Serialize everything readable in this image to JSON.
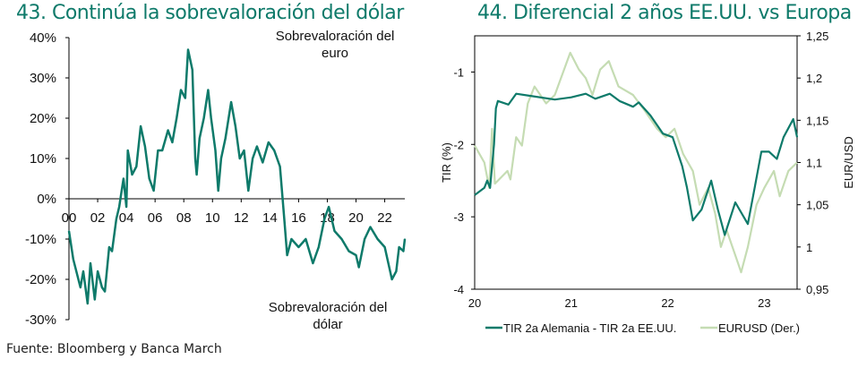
{
  "source": "Fuente: Bloomberg y Banca March",
  "chart_data": [
    {
      "type": "line",
      "title": "43. Continúa la sobrevaloración del dólar",
      "xlabel": "",
      "ylabel": "",
      "xlim": [
        2000,
        2023.4
      ],
      "ylim": [
        -30,
        40
      ],
      "y_ticks": [
        "40%",
        "30%",
        "20%",
        "10%",
        "0%",
        "-10%",
        "-20%",
        "-30%"
      ],
      "y_tick_values": [
        40,
        30,
        20,
        10,
        0,
        -10,
        -20,
        -30
      ],
      "x_ticks": [
        "00",
        "02",
        "04",
        "06",
        "08",
        "10",
        "12",
        "14",
        "16",
        "18",
        "20",
        "22"
      ],
      "x_tick_values": [
        2000,
        2002,
        2004,
        2006,
        2008,
        2010,
        2012,
        2014,
        2016,
        2018,
        2020,
        2022
      ],
      "annotations": [
        "Sobrevaloración del",
        "euro",
        "Sobrevaloración del",
        "dólar"
      ],
      "color": "#0e7a6a",
      "grid": false,
      "x": [
        2000.0,
        2000.3,
        2000.8,
        2001.0,
        2001.3,
        2001.5,
        2001.8,
        2002.0,
        2002.3,
        2002.5,
        2002.8,
        2003.0,
        2003.3,
        2003.5,
        2003.8,
        2004.0,
        2004.1,
        2004.4,
        2004.7,
        2005.0,
        2005.3,
        2005.6,
        2005.9,
        2006.2,
        2006.5,
        2006.9,
        2007.2,
        2007.5,
        2007.8,
        2008.1,
        2008.3,
        2008.6,
        2008.8,
        2008.9,
        2009.1,
        2009.4,
        2009.7,
        2009.9,
        2010.2,
        2010.4,
        2010.6,
        2010.9,
        2011.3,
        2011.6,
        2011.9,
        2012.2,
        2012.5,
        2012.8,
        2013.1,
        2013.5,
        2013.9,
        2014.3,
        2014.7,
        2015.0,
        2015.2,
        2015.5,
        2016.0,
        2016.5,
        2017.0,
        2017.4,
        2017.8,
        2018.1,
        2018.5,
        2019.0,
        2019.5,
        2020.0,
        2020.2,
        2020.6,
        2021.0,
        2021.5,
        2022.0,
        2022.5,
        2022.8,
        2023.0,
        2023.3,
        2023.4
      ],
      "values": [
        -8,
        -15,
        -22,
        -18,
        -26,
        -16,
        -25,
        -18,
        -22,
        -23,
        -12,
        -13,
        -5,
        -2,
        5,
        -2,
        12,
        6,
        8,
        18,
        13,
        5,
        2,
        12,
        12,
        17,
        14,
        20,
        27,
        25,
        37,
        32,
        10,
        6,
        15,
        20,
        27,
        20,
        12,
        2,
        10,
        15,
        24,
        18,
        10,
        12,
        2,
        10,
        13,
        9,
        14,
        12,
        8,
        -5,
        -14,
        -10,
        -12,
        -10,
        -16,
        -12,
        -5,
        -2,
        -8,
        -10,
        -13,
        -14,
        -17,
        -10,
        -7,
        -10,
        -12,
        -20,
        -18,
        -12,
        -13,
        -10
      ]
    },
    {
      "type": "line",
      "title": "44. Diferencial 2 años EE.UU. vs Europa",
      "xlabel": "",
      "ylabel": "TIR (%)",
      "y2label": "EUR/USD",
      "xlim": [
        2020,
        2023.34
      ],
      "ylim": [
        -4,
        -0.5
      ],
      "y2lim": [
        0.95,
        1.25
      ],
      "x_ticks": [
        "20",
        "21",
        "22",
        "23"
      ],
      "x_tick_values": [
        2020,
        2021,
        2022,
        2023
      ],
      "y_ticks": [
        "-1",
        "-2",
        "-3",
        "-4"
      ],
      "y_tick_values": [
        -1,
        -2,
        -3,
        -4
      ],
      "y2_ticks": [
        "1,25",
        "1,2",
        "1,15",
        "1,1",
        "1,05",
        "1",
        "0,95"
      ],
      "y2_tick_values": [
        1.25,
        1.2,
        1.15,
        1.1,
        1.05,
        1.0,
        0.95
      ],
      "legend_position": "bottom",
      "grid": false,
      "series": [
        {
          "name": "TIR 2a Alemania - TIR 2a EE.UU.",
          "axis": "left",
          "color": "#0e7a6a",
          "x": [
            2020.0,
            2020.1,
            2020.13,
            2020.16,
            2020.2,
            2020.22,
            2020.24,
            2020.35,
            2020.43,
            2020.58,
            2020.83,
            2021.0,
            2021.15,
            2021.25,
            2021.4,
            2021.5,
            2021.64,
            2021.7,
            2021.82,
            2021.95,
            2022.05,
            2022.15,
            2022.2,
            2022.26,
            2022.35,
            2022.45,
            2022.52,
            2022.59,
            2022.7,
            2022.83,
            2022.9,
            2022.97,
            2023.05,
            2023.13,
            2023.2,
            2023.3,
            2023.34
          ],
          "values": [
            -2.7,
            -2.6,
            -2.5,
            -2.6,
            -2.0,
            -1.5,
            -1.4,
            -1.45,
            -1.3,
            -1.33,
            -1.38,
            -1.35,
            -1.3,
            -1.37,
            -1.3,
            -1.4,
            -1.48,
            -1.42,
            -1.6,
            -1.85,
            -1.9,
            -2.3,
            -2.6,
            -3.05,
            -2.9,
            -2.5,
            -2.9,
            -3.25,
            -2.8,
            -3.1,
            -2.6,
            -2.1,
            -2.1,
            -2.2,
            -1.9,
            -1.65,
            -1.9
          ]
        },
        {
          "name": "EURUSD (Der.)",
          "axis": "right",
          "color": "#c5dcb3",
          "x": [
            2020.0,
            2020.1,
            2020.15,
            2020.18,
            2020.21,
            2020.34,
            2020.37,
            2020.43,
            2020.49,
            2020.55,
            2020.62,
            2020.74,
            2020.83,
            2020.99,
            2021.08,
            2021.15,
            2021.22,
            2021.3,
            2021.39,
            2021.49,
            2021.64,
            2021.77,
            2021.89,
            2021.98,
            2022.07,
            2022.16,
            2022.26,
            2022.33,
            2022.42,
            2022.49,
            2022.55,
            2022.61,
            2022.73,
            2022.76,
            2022.83,
            2022.92,
            2023.0,
            2023.1,
            2023.16,
            2023.25,
            2023.34
          ],
          "values": [
            1.12,
            1.1,
            1.07,
            1.14,
            1.075,
            1.09,
            1.08,
            1.13,
            1.12,
            1.17,
            1.19,
            1.17,
            1.18,
            1.23,
            1.21,
            1.2,
            1.18,
            1.21,
            1.22,
            1.19,
            1.18,
            1.16,
            1.14,
            1.13,
            1.14,
            1.11,
            1.09,
            1.05,
            1.07,
            1.04,
            1.0,
            1.02,
            0.98,
            0.97,
            1.0,
            1.05,
            1.07,
            1.09,
            1.06,
            1.09,
            1.1
          ]
        }
      ]
    }
  ]
}
